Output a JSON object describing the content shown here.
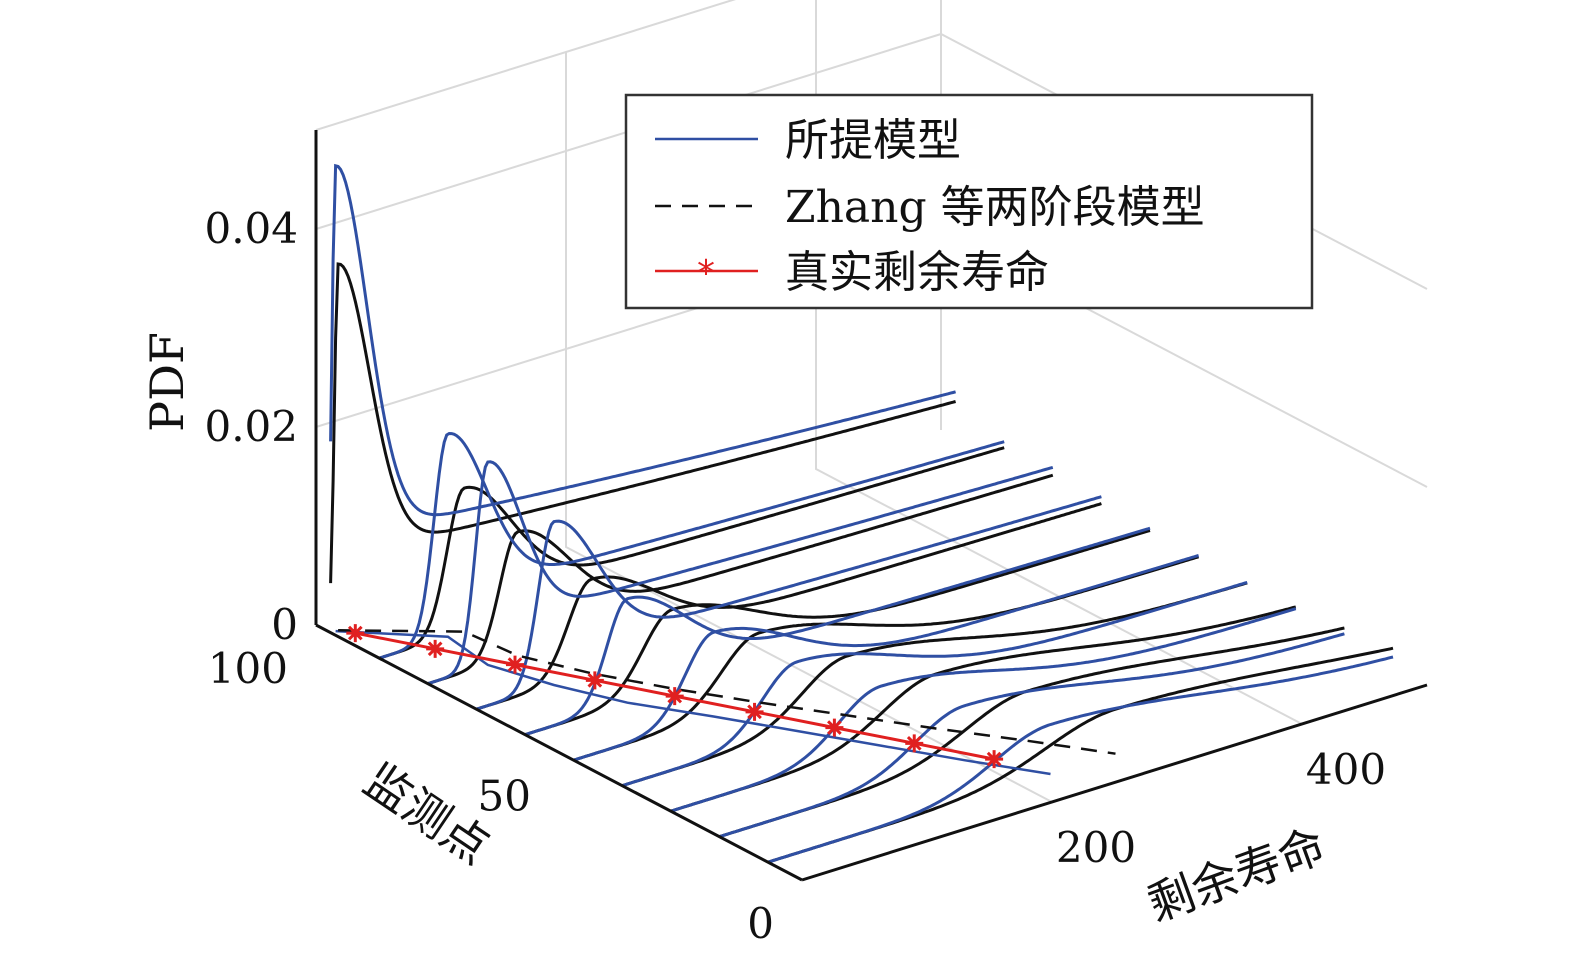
{
  "chart_data": {
    "type": "line",
    "title": "",
    "axes": {
      "x": {
        "label": "剩余寿命",
        "ticks": [
          200,
          400
        ],
        "range": [
          0,
          500
        ]
      },
      "y": {
        "label": "监测点",
        "ticks": [
          0,
          50,
          100
        ],
        "range": [
          0,
          100
        ]
      },
      "z": {
        "label": "PDF",
        "ticks": [
          "0",
          "0.02",
          "0.04"
        ],
        "range": [
          0,
          0.05
        ]
      }
    },
    "grid": true,
    "legend_position": "top-right",
    "colors": {
      "proposed": "#2f4fa3",
      "zhang": "#111111",
      "true_rul": "#e02020"
    },
    "monitoring_points": [
      97,
      87,
      77,
      67,
      57,
      47,
      37,
      27,
      17,
      7
    ],
    "series": [
      {
        "name": "所提模型",
        "curves": [
          {
            "monitoring_point": 97,
            "peak_rul": 4,
            "peak_pdf": 0.047
          },
          {
            "monitoring_point": 87,
            "peak_rul": 55,
            "peak_pdf": 0.0205
          },
          {
            "monitoring_point": 77,
            "peak_rul": 48,
            "peak_pdf": 0.0205
          },
          {
            "monitoring_point": 67,
            "peak_rul": 62,
            "peak_pdf": 0.0165
          },
          {
            "monitoring_point": 57,
            "peak_rul": 82,
            "peak_pdf": 0.0105
          },
          {
            "monitoring_point": 47,
            "peak_rul": 112,
            "peak_pdf": 0.0085
          },
          {
            "monitoring_point": 37,
            "peak_rul": 140,
            "peak_pdf": 0.007
          },
          {
            "monitoring_point": 27,
            "peak_rul": 168,
            "peak_pdf": 0.006
          },
          {
            "monitoring_point": 17,
            "peak_rul": 196,
            "peak_pdf": 0.0055
          },
          {
            "monitoring_point": 7,
            "peak_rul": 226,
            "peak_pdf": 0.005
          }
        ]
      },
      {
        "name": "Zhang 等两阶段模型",
        "curves": [
          {
            "monitoring_point": 97,
            "peak_rul": 6,
            "peak_pdf": 0.037
          },
          {
            "monitoring_point": 87,
            "peak_rul": 68,
            "peak_pdf": 0.0145
          },
          {
            "monitoring_point": 77,
            "peak_rul": 72,
            "peak_pdf": 0.0125
          },
          {
            "monitoring_point": 67,
            "peak_rul": 92,
            "peak_pdf": 0.0095
          },
          {
            "monitoring_point": 57,
            "peak_rul": 118,
            "peak_pdf": 0.008
          },
          {
            "monitoring_point": 47,
            "peak_rul": 148,
            "peak_pdf": 0.007
          },
          {
            "monitoring_point": 37,
            "peak_rul": 180,
            "peak_pdf": 0.006
          },
          {
            "monitoring_point": 27,
            "peak_rul": 212,
            "peak_pdf": 0.0055
          },
          {
            "monitoring_point": 17,
            "peak_rul": 246,
            "peak_pdf": 0.005
          },
          {
            "monitoring_point": 7,
            "peak_rul": 278,
            "peak_pdf": 0.0045
          }
        ]
      },
      {
        "name": "真实剩余寿命",
        "x": [
          12,
          37,
          62,
          87,
          112,
          137,
          162,
          187,
          212
        ],
        "y": [
          95,
          85,
          75,
          65,
          55,
          45,
          35,
          25,
          15
        ],
        "z": [
          0,
          0,
          0,
          0,
          0,
          0,
          0,
          0,
          0
        ]
      }
    ]
  }
}
